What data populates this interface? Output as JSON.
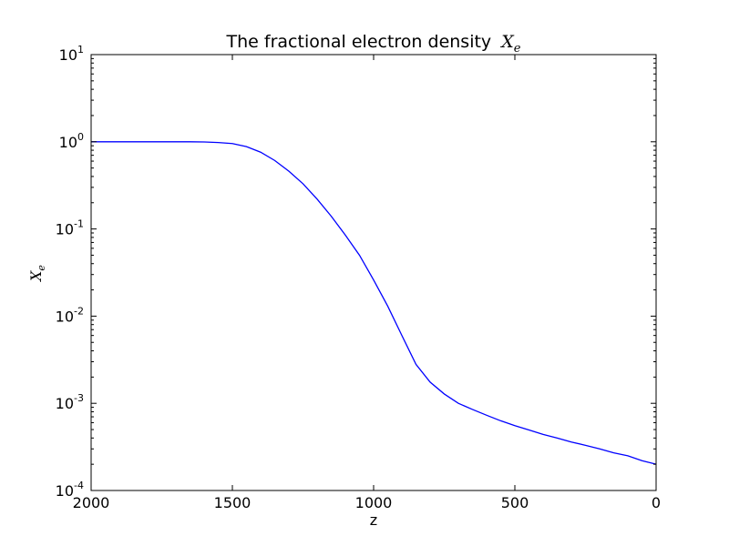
{
  "chart_data": {
    "type": "line",
    "title": "The fractional electron density",
    "title_math": "X",
    "title_math_sub": "e",
    "xlabel": "z",
    "ylabel": "X",
    "ylabel_sub": "e",
    "xlim": [
      2000,
      0
    ],
    "ylim": [
      0.0001,
      10
    ],
    "yscale": "log",
    "grid": false,
    "line_color": "#0000ff",
    "x_ticks": [
      2000,
      1500,
      1000,
      500,
      0
    ],
    "x_tick_labels": [
      "2000",
      "1500",
      "1000",
      "500",
      "0"
    ],
    "y_ticks": [
      0.0001,
      0.001,
      0.01,
      0.1,
      1,
      10
    ],
    "y_tick_base": "10",
    "y_tick_exponents": [
      "-4",
      "-3",
      "-2",
      "-1",
      "0",
      "1"
    ],
    "series": [
      {
        "x": [
          2000,
          1900,
          1800,
          1700,
          1650,
          1600,
          1550,
          1500,
          1450,
          1400,
          1350,
          1300,
          1250,
          1200,
          1150,
          1100,
          1050,
          1000,
          950,
          900,
          850,
          800,
          750,
          700,
          650,
          600,
          550,
          500,
          450,
          400,
          350,
          300,
          250,
          200,
          150,
          100,
          50,
          0
        ],
        "y": [
          1.0,
          1.0,
          1.0,
          1.0,
          1.0,
          0.995,
          0.98,
          0.955,
          0.88,
          0.76,
          0.61,
          0.46,
          0.33,
          0.22,
          0.14,
          0.085,
          0.05,
          0.026,
          0.013,
          0.006,
          0.0028,
          0.00175,
          0.00128,
          0.001,
          0.00085,
          0.00073,
          0.00063,
          0.000555,
          0.000495,
          0.00044,
          0.0004,
          0.00036,
          0.00033,
          0.0003,
          0.00027,
          0.00025,
          0.00022,
          0.0002
        ]
      }
    ]
  }
}
